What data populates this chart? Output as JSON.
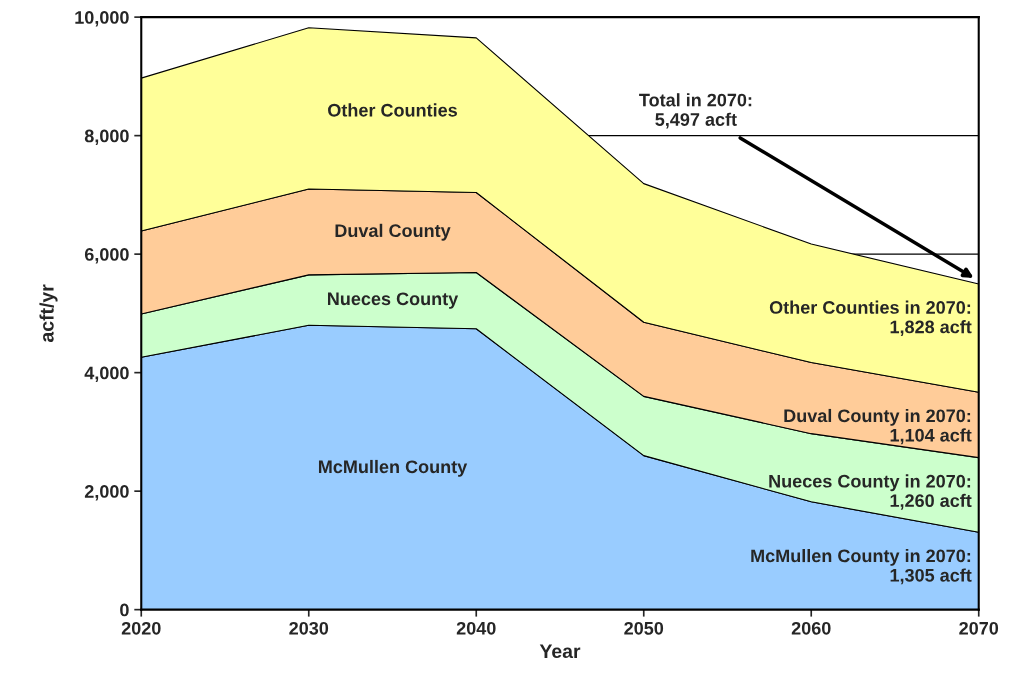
{
  "chart_data": {
    "type": "area",
    "stacked": true,
    "xlabel": "Year",
    "ylabel": "acft/yr",
    "x": [
      2020,
      2030,
      2040,
      2050,
      2060,
      2070
    ],
    "series": [
      {
        "name": "McMullen County",
        "color": "#99ccff",
        "values": [
          4260,
          4800,
          4740,
          2600,
          1820,
          1305
        ]
      },
      {
        "name": "Nueces County",
        "color": "#ccffcc",
        "values": [
          730,
          850,
          950,
          1000,
          1150,
          1260
        ]
      },
      {
        "name": "Duval County",
        "color": "#ffcc99",
        "values": [
          1400,
          1450,
          1350,
          1250,
          1200,
          1104
        ]
      },
      {
        "name": "Other Counties",
        "color": "#ffff99",
        "values": [
          2580,
          2720,
          2610,
          2340,
          2000,
          1828
        ]
      }
    ],
    "xlim": [
      2020,
      2070
    ],
    "xticks": [
      2020,
      2030,
      2040,
      2050,
      2060,
      2070
    ],
    "ylim": [
      0,
      10000
    ],
    "yticks": [
      {
        "value": 0,
        "label": "0"
      },
      {
        "value": 2000,
        "label": "2,000"
      },
      {
        "value": 4000,
        "label": "4,000"
      },
      {
        "value": 6000,
        "label": "6,000"
      },
      {
        "value": 8000,
        "label": "8,000"
      },
      {
        "value": 10000,
        "label": "10,000"
      }
    ],
    "grid": "y",
    "legend": false,
    "annotations": [
      "Total in 2070:\n5,497 acft",
      "Other Counties in 2070:\n1,828 acft",
      "Duval County in 2070:\n1,104 acft",
      "Nueces County in 2070:\n1,260 acft",
      "McMullen County in 2070:\n1,305 acft"
    ]
  }
}
